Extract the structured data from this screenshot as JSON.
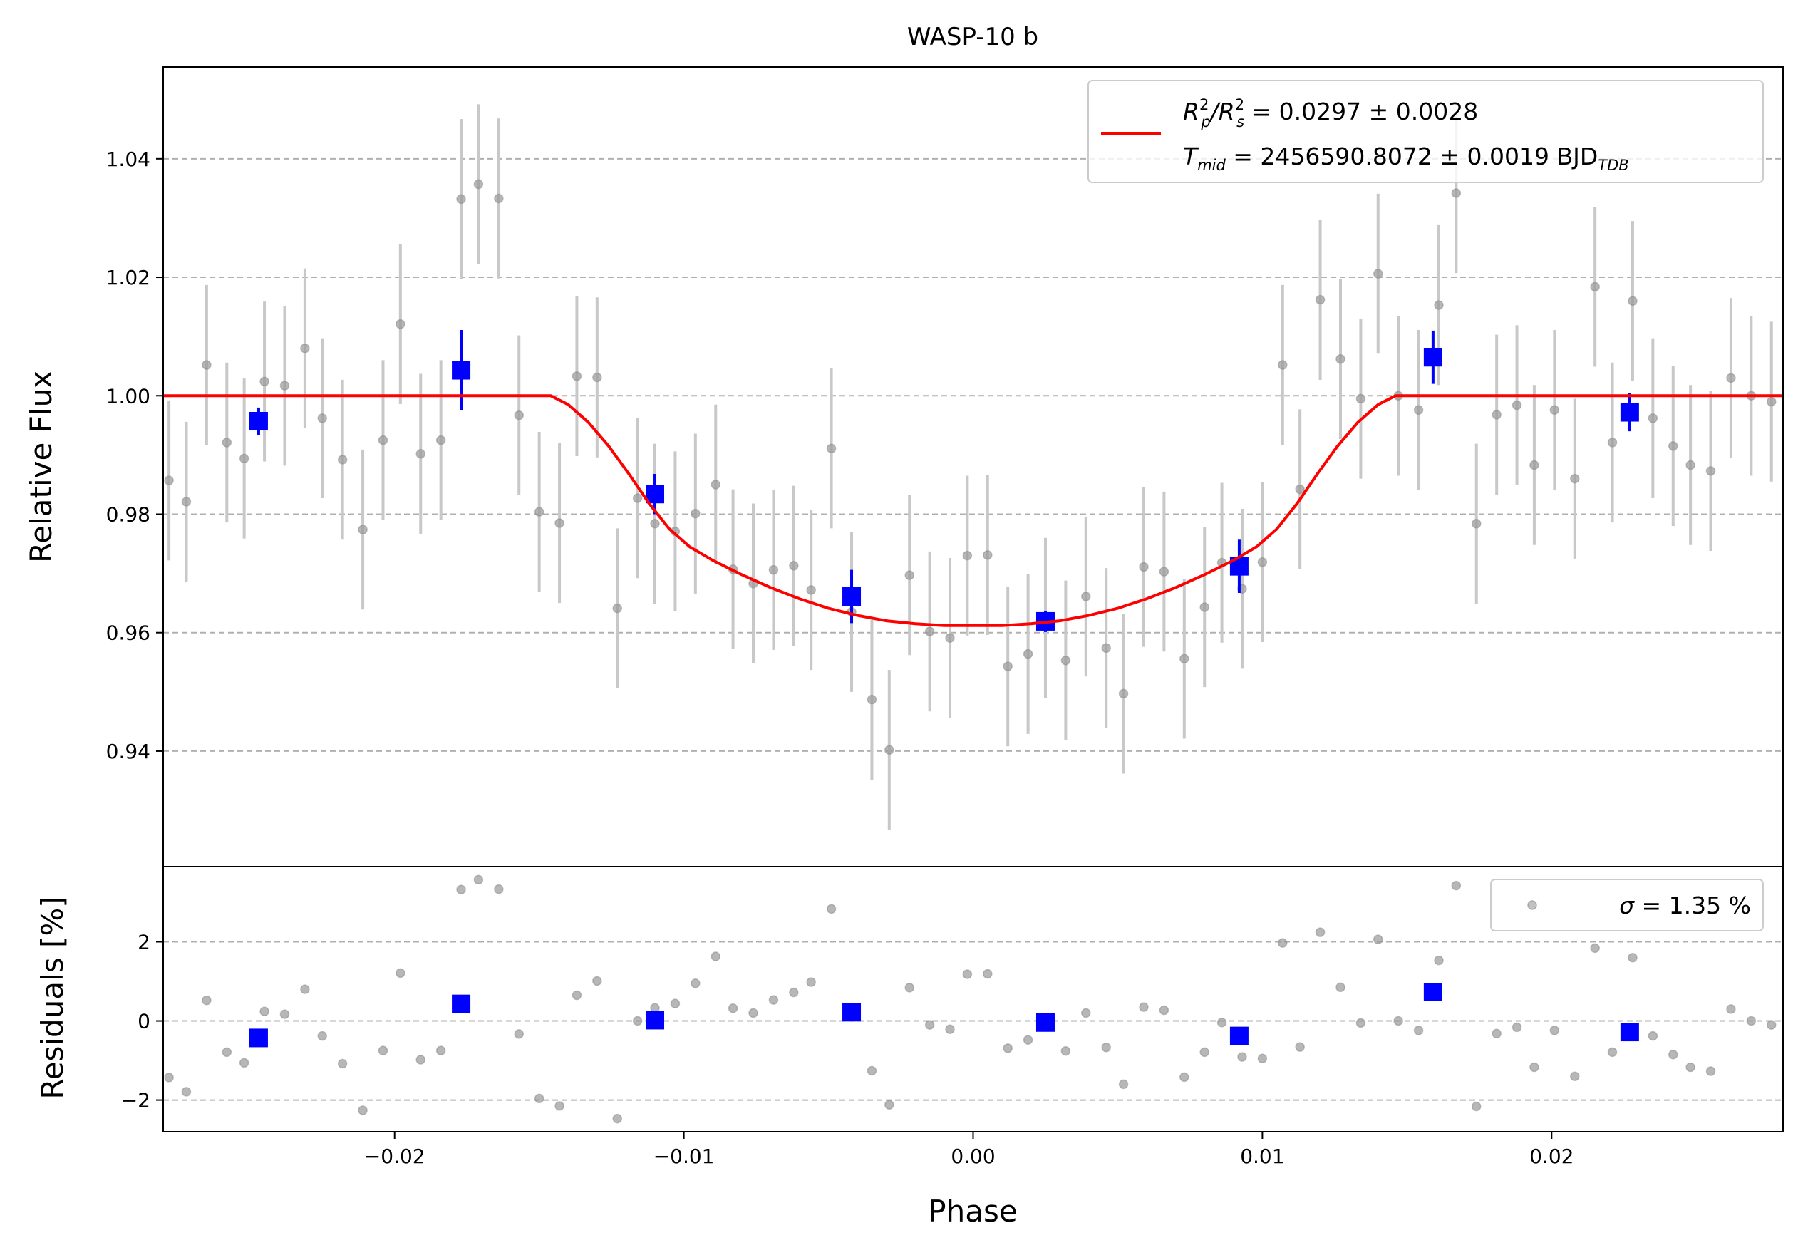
{
  "chart_data": [
    {
      "type": "scatter",
      "title": "WASP-10 b",
      "ylabel": "Relative Flux",
      "xlim": [
        -0.028,
        0.028
      ],
      "ylim": [
        0.9205,
        1.0555
      ],
      "y_ticks": [
        0.94,
        0.96,
        0.98,
        1.0,
        1.02,
        1.04
      ],
      "y_tick_labels": [
        "0.94",
        "0.96",
        "0.98",
        "1.00",
        "1.02",
        "1.04"
      ],
      "grid": "horizontal dashed",
      "colors": {
        "raw": "#999999",
        "raw_err": "#c8c8c8",
        "binned": "#0000ff",
        "model": "#ff0000"
      },
      "legend": {
        "placement": "top-right",
        "line1": {
          "base1": "R",
          "sup1": "2",
          "sub1": "p",
          "mid": "/R",
          "sup2": "2",
          "sub2": "s",
          "tail": " = 0.0297 ± 0.0028"
        },
        "line2": {
          "base": "T",
          "sub": "mid",
          "tail": " = 2456590.8072 ± 0.0019 BJD",
          "sub2": "TDB"
        }
      },
      "model": {
        "name": "transit model",
        "x": [
          -0.028,
          -0.0146,
          -0.014,
          -0.0133,
          -0.0126,
          -0.0119,
          -0.0112,
          -0.0105,
          -0.0098,
          -0.009,
          -0.008,
          -0.007,
          -0.006,
          -0.005,
          -0.004,
          -0.003,
          -0.002,
          -0.001,
          0.0,
          0.001,
          0.002,
          0.003,
          0.004,
          0.005,
          0.006,
          0.007,
          0.008,
          0.009,
          0.0098,
          0.0105,
          0.0112,
          0.0119,
          0.0126,
          0.0133,
          0.014,
          0.0146,
          0.028
        ],
        "y": [
          1.0,
          1.0,
          0.9985,
          0.9955,
          0.9915,
          0.9868,
          0.9818,
          0.9775,
          0.9745,
          0.9722,
          0.9698,
          0.9676,
          0.9657,
          0.9641,
          0.9629,
          0.962,
          0.9615,
          0.9612,
          0.9612,
          0.9612,
          0.9615,
          0.962,
          0.9629,
          0.9641,
          0.9657,
          0.9676,
          0.9698,
          0.9722,
          0.9745,
          0.9775,
          0.9818,
          0.9868,
          0.9915,
          0.9955,
          0.9985,
          1.0,
          1.0
        ]
      },
      "raw": {
        "x": [
          -0.0278,
          -0.0272,
          -0.0265,
          -0.0258,
          -0.0252,
          -0.0245,
          -0.0238,
          -0.0231,
          -0.0225,
          -0.0218,
          -0.0211,
          -0.0204,
          -0.0198,
          -0.0191,
          -0.0184,
          -0.0177,
          -0.0171,
          -0.0164,
          -0.0157,
          -0.015,
          -0.0143,
          -0.0137,
          -0.013,
          -0.0123,
          -0.0116,
          -0.011,
          -0.0103,
          -0.0096,
          -0.0089,
          -0.0083,
          -0.0076,
          -0.0069,
          -0.0062,
          -0.0056,
          -0.0049,
          -0.0042,
          -0.0035,
          -0.0029,
          -0.0022,
          -0.0015,
          -0.0008,
          -0.0002,
          0.0005,
          0.0012,
          0.0019,
          0.0025,
          0.0032,
          0.0039,
          0.0046,
          0.0052,
          0.0059,
          0.0066,
          0.0073,
          0.008,
          0.0086,
          0.0093,
          0.01,
          0.0107,
          0.0113,
          0.012,
          0.0127,
          0.0134,
          0.014,
          0.0147,
          0.0154,
          0.0161,
          0.0167,
          0.0174,
          0.0181,
          0.0188,
          0.0194,
          0.0201,
          0.0208,
          0.0215,
          0.0221,
          0.0228,
          0.0235,
          0.0242,
          0.0248,
          0.0255,
          0.0262,
          0.0269,
          0.0276
        ],
        "y": [
          0.9857,
          0.9821,
          1.0052,
          0.9921,
          0.9894,
          1.0024,
          1.0017,
          1.008,
          0.9962,
          0.9892,
          0.9774,
          0.9925,
          1.0121,
          0.9902,
          0.9925,
          1.0332,
          1.0357,
          1.0333,
          0.9967,
          0.9804,
          0.9785,
          1.0033,
          1.0031,
          0.9641,
          0.9827,
          0.9784,
          0.9771,
          0.9801,
          0.985,
          0.9707,
          0.9683,
          0.9706,
          0.9713,
          0.9672,
          0.9911,
          0.9635,
          0.9487,
          0.9402,
          0.9697,
          0.9602,
          0.9591,
          0.973,
          0.9731,
          0.9543,
          0.9564,
          0.9625,
          0.9553,
          0.9661,
          0.9574,
          0.9497,
          0.9711,
          0.9703,
          0.9556,
          0.9643,
          0.9718,
          0.9674,
          0.9719,
          1.0052,
          0.9842,
          1.0162,
          1.0062,
          0.9995,
          1.0206,
          1.0,
          0.9976,
          1.0153,
          1.0342,
          0.9784,
          0.9968,
          0.9984,
          0.9883,
          0.9976,
          0.986,
          1.0184,
          0.9921,
          1.016,
          0.9962,
          0.9915,
          0.9883,
          0.9873,
          1.003,
          1.0,
          0.999
        ],
        "err": 0.0135
      },
      "binned": {
        "x": [
          -0.0247,
          -0.0177,
          -0.011,
          -0.0042,
          0.0025,
          0.0092,
          0.0159,
          0.0227
        ],
        "y": [
          0.9957,
          1.0043,
          0.9834,
          0.9661,
          0.9619,
          0.9712,
          1.0065,
          0.9972
        ],
        "err": [
          0.0023,
          0.0068,
          0.0034,
          0.0045,
          0.0018,
          0.0045,
          0.0045,
          0.0032
        ]
      }
    },
    {
      "type": "scatter",
      "xlabel": "Phase",
      "ylabel": "Residuals [%]",
      "xlim": [
        -0.028,
        0.028
      ],
      "ylim": [
        -2.8,
        3.9
      ],
      "y_ticks": [
        -2,
        0,
        2
      ],
      "y_tick_labels": [
        "−2",
        "0",
        "2"
      ],
      "x_ticks": [
        -0.02,
        -0.01,
        0.0,
        0.01,
        0.02
      ],
      "x_tick_labels": [
        "−0.02",
        "−0.01",
        "0.00",
        "0.01",
        "0.02"
      ],
      "grid": "horizontal dashed",
      "legend": {
        "placement": "top-right",
        "sym": "σ",
        "text": " = 1.35 %"
      },
      "raw_residuals": [
        -1.43,
        -1.79,
        0.52,
        -0.79,
        -1.06,
        0.24,
        0.17,
        0.8,
        -0.38,
        -1.08,
        -2.26,
        -0.75,
        1.21,
        -0.98,
        -0.75,
        3.32,
        3.57,
        3.33,
        -0.33,
        -1.96,
        -2.15,
        0.65,
        1.01,
        -2.47,
        0.0,
        0.33,
        0.44,
        0.95,
        1.63,
        0.32,
        0.2,
        0.53,
        0.72,
        0.98,
        2.83,
        0.14,
        -1.26,
        -2.12,
        0.84,
        -0.1,
        -0.21,
        1.18,
        1.19,
        -0.69,
        -0.48,
        0.05,
        -0.76,
        0.2,
        -0.67,
        -1.6,
        0.35,
        0.27,
        -1.42,
        -0.79,
        -0.04,
        -0.91,
        -0.95,
        1.97,
        -0.66,
        2.24,
        0.85,
        -0.05,
        2.06,
        0.0,
        -0.24,
        1.53,
        3.42,
        -2.16,
        -0.32,
        -0.16,
        -1.17,
        -0.24,
        -1.4,
        1.84,
        -0.79,
        1.6,
        -0.38,
        -0.85,
        -1.17,
        -1.27,
        0.3,
        0.0,
        -0.1
      ],
      "binned_residuals": [
        -0.43,
        0.43,
        0.02,
        0.22,
        -0.04,
        -0.38,
        0.73,
        -0.28
      ]
    }
  ]
}
